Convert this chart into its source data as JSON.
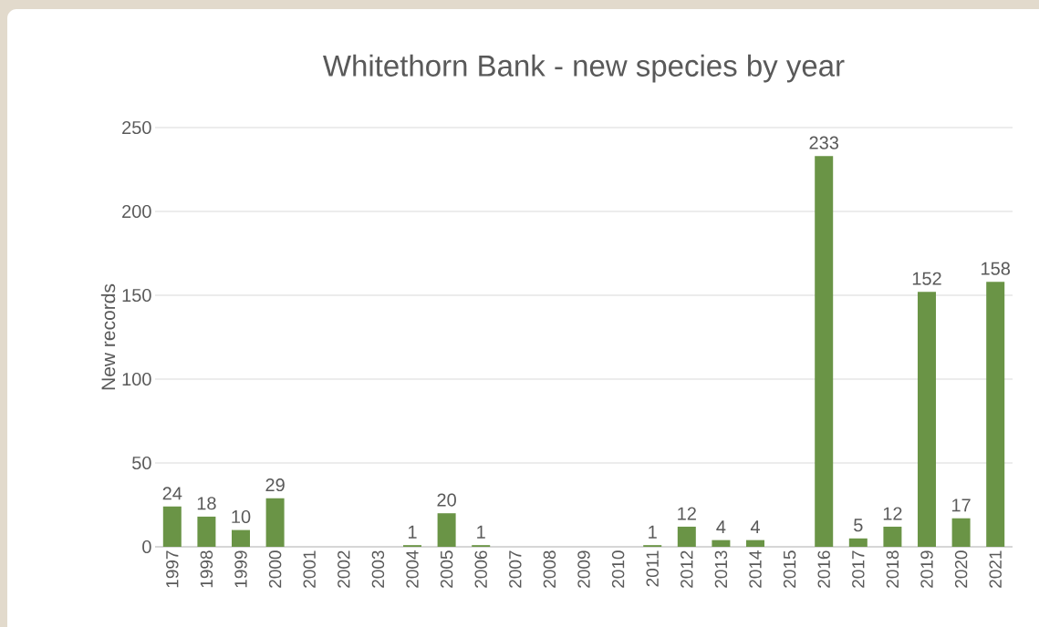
{
  "chart_data": {
    "type": "bar",
    "title": "Whitethorn Bank - new species by year",
    "ylabel": "New records",
    "categories": [
      "1997",
      "1998",
      "1999",
      "2000",
      "2001",
      "2002",
      "2003",
      "2004",
      "2005",
      "2006",
      "2007",
      "2008",
      "2009",
      "2010",
      "2011",
      "2012",
      "2013",
      "2014",
      "2015",
      "2016",
      "2017",
      "2018",
      "2019",
      "2020",
      "2021"
    ],
    "values": [
      24,
      18,
      10,
      29,
      null,
      null,
      null,
      1,
      20,
      1,
      null,
      null,
      null,
      null,
      1,
      12,
      4,
      4,
      null,
      233,
      5,
      12,
      152,
      17,
      158
    ],
    "value_labels": [
      "24",
      "18",
      "10",
      "29",
      null,
      null,
      null,
      "1",
      "20",
      "1",
      null,
      null,
      null,
      null,
      "1",
      "12",
      "4",
      "4",
      null,
      "233",
      "5",
      "12",
      "152",
      "17",
      "158"
    ],
    "color": "#6a9446",
    "ylim": [
      0,
      250
    ],
    "yticks": [
      0,
      50,
      100,
      150,
      200,
      250
    ],
    "grid": "y"
  }
}
